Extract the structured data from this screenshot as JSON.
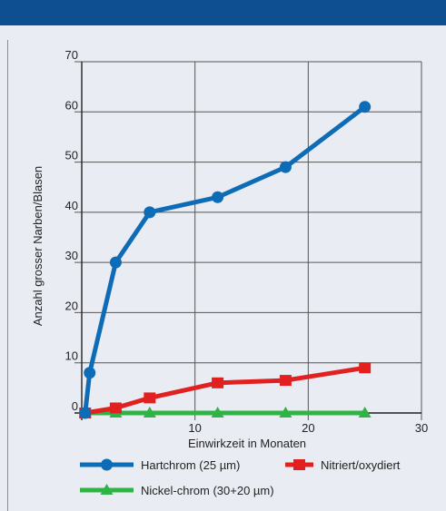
{
  "chart_data": {
    "type": "line",
    "title": "",
    "xlabel": "Einwirkzeit in Monaten",
    "ylabel": "Anzahl grosser Narben/Blasen",
    "xlim": [
      0,
      30
    ],
    "ylim": [
      0,
      70
    ],
    "x_ticks": [
      10,
      20,
      30
    ],
    "y_ticks": [
      0,
      10,
      20,
      30,
      40,
      50,
      60,
      70
    ],
    "grid": true,
    "legend_position": "bottom",
    "series": [
      {
        "name": "Hartchrom (25 µm)",
        "color": "#0d6cb5",
        "marker": "circle",
        "x": [
          0.3,
          0.7,
          3,
          6,
          12,
          18,
          25
        ],
        "y": [
          0,
          8,
          30,
          40,
          43,
          49,
          61
        ]
      },
      {
        "name": "Nitriert/oxydiert",
        "color": "#e32020",
        "marker": "square",
        "x": [
          0.3,
          3,
          6,
          12,
          18,
          25
        ],
        "y": [
          0,
          1,
          3,
          6,
          6.5,
          9
        ]
      },
      {
        "name": "Nickel-chrom (30+20 µm)",
        "color": "#2fb344",
        "marker": "triangle",
        "x": [
          0.3,
          3,
          6,
          12,
          18,
          25
        ],
        "y": [
          0,
          0,
          0,
          0,
          0,
          0
        ]
      }
    ]
  }
}
